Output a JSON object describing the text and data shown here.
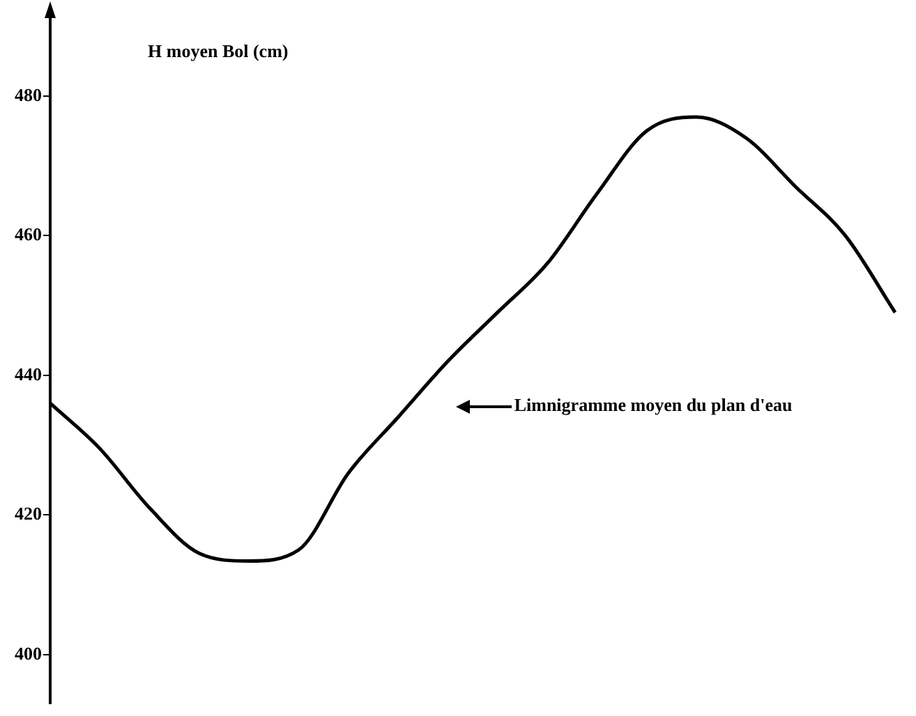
{
  "chart_data": {
    "type": "line",
    "ylabel": "H moyen Bol (cm)",
    "categories": [
      null,
      null,
      null,
      null,
      null,
      null,
      null,
      null,
      null,
      null,
      null,
      null,
      null,
      null,
      null,
      null,
      null,
      null
    ],
    "series": [
      {
        "color": "#000000",
        "values": [
          436,
          429.5,
          421,
          414.5,
          413.4,
          415,
          426,
          434,
          442,
          449,
          456,
          466,
          475,
          477,
          474,
          467,
          460,
          449
        ]
      }
    ],
    "ylim": [
      393,
      492
    ],
    "yticks": [
      400,
      420,
      440,
      460,
      480
    ],
    "grid": false,
    "legend": false,
    "tick_labels": "y",
    "marker": "none",
    "line_style": "solid",
    "annotations": [
      "Limnigramme moyen du plan d'eau"
    ]
  }
}
